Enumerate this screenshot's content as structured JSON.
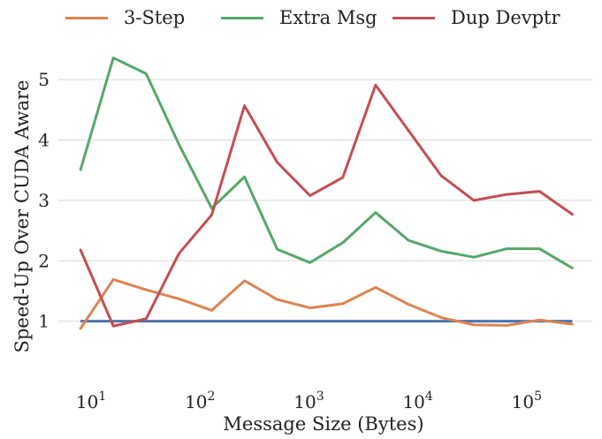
{
  "chart_data": {
    "type": "line",
    "title": "",
    "xlabel": "Message Size (Bytes)",
    "ylabel": "Speed-Up Over CUDA Aware",
    "xscale": "log",
    "xlim": [
      5,
      400000
    ],
    "ylim": [
      0,
      5.5
    ],
    "yticks": [
      1,
      2,
      3,
      4,
      5
    ],
    "xticks": [
      {
        "value": 10,
        "base": "10",
        "exp": "1"
      },
      {
        "value": 100,
        "base": "10",
        "exp": "2"
      },
      {
        "value": 1000,
        "base": "10",
        "exp": "3"
      },
      {
        "value": 10000,
        "base": "10",
        "exp": "4"
      },
      {
        "value": 100000,
        "base": "10",
        "exp": "5"
      }
    ],
    "grid": "horizontal",
    "legend_position": "top",
    "x": [
      8,
      16,
      32,
      64,
      128,
      256,
      512,
      1024,
      2048,
      4096,
      8192,
      16384,
      32768,
      65536,
      131072,
      262144
    ],
    "baseline": {
      "value": 1,
      "color": "#4c72b0"
    },
    "series": [
      {
        "name": "3-Step",
        "color": "#dd8452",
        "values": [
          0.88,
          1.69,
          1.52,
          1.37,
          1.18,
          1.67,
          1.36,
          1.22,
          1.29,
          1.56,
          1.28,
          1.06,
          0.94,
          0.93,
          1.02,
          0.95
        ]
      },
      {
        "name": "Extra Msg",
        "color": "#55a868",
        "values": [
          3.51,
          5.36,
          5.1,
          3.93,
          2.87,
          3.39,
          2.19,
          1.97,
          2.3,
          2.8,
          2.34,
          2.16,
          2.06,
          2.2,
          2.2,
          1.88
        ]
      },
      {
        "name": "Dup Devptr",
        "color": "#c44e52",
        "values": [
          2.18,
          0.92,
          1.04,
          2.12,
          2.76,
          4.57,
          3.63,
          3.08,
          3.38,
          4.91,
          4.16,
          3.41,
          3.0,
          3.1,
          3.15,
          2.77
        ]
      }
    ]
  }
}
